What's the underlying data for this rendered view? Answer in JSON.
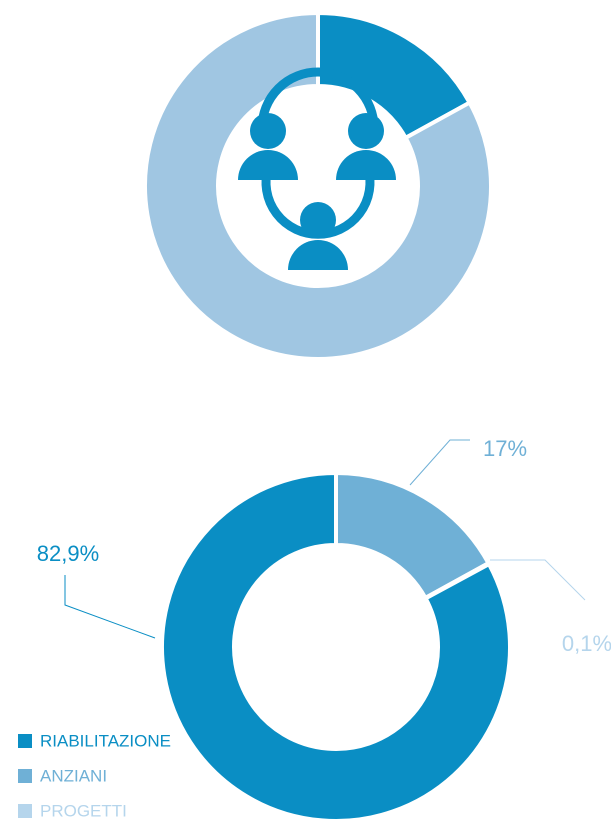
{
  "chart_data": [
    {
      "type": "donut",
      "values": [
        83,
        17
      ],
      "colors": [
        "#a0c6e2",
        "#0a8ec4"
      ]
    },
    {
      "type": "donut",
      "categories": [
        "RIABILITAZIONE",
        "ANZIANI",
        "PROGETTI"
      ],
      "values": [
        82.9,
        17,
        0.1
      ],
      "value_labels": [
        "82,9%",
        "17%",
        "0,1%"
      ],
      "colors": [
        "#0a8ec4",
        "#6fb0d6",
        "#b5d5ec"
      ],
      "legend": "bottom-left"
    }
  ]
}
